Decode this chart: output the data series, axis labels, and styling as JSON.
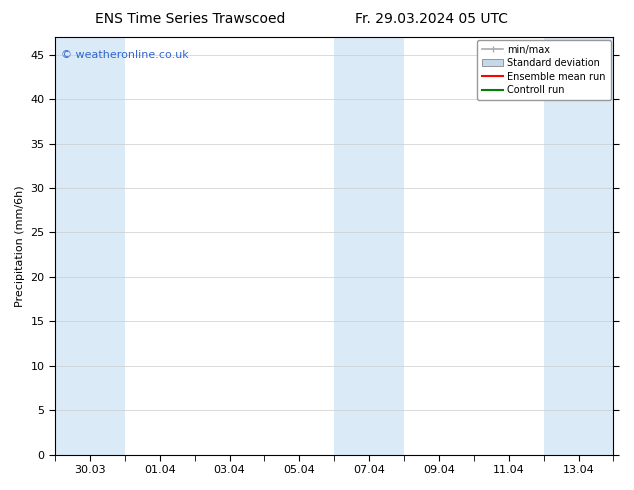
{
  "title_left": "ENS Time Series Trawscoed",
  "title_right": "Fr. 29.03.2024 05 UTC",
  "ylabel": "Precipitation (mm/6h)",
  "watermark": "© weatheronline.co.uk",
  "watermark_color": "#3366cc",
  "bg_color": "#ffffff",
  "plot_bg_color": "#ffffff",
  "ylim": [
    0,
    47
  ],
  "yticks": [
    0,
    5,
    10,
    15,
    20,
    25,
    30,
    35,
    40,
    45
  ],
  "xlim_days": [
    0,
    16
  ],
  "xtick_positions": [
    1,
    3,
    5,
    7,
    9,
    11,
    13,
    15
  ],
  "xtick_labels": [
    "30.03",
    "01.04",
    "03.04",
    "05.04",
    "07.04",
    "09.04",
    "11.04",
    "13.04"
  ],
  "shaded_bands": [
    {
      "x_start": 0,
      "x_end": 2
    },
    {
      "x_start": 8,
      "x_end": 10
    },
    {
      "x_start": 14,
      "x_end": 16
    }
  ],
  "band_color": "#daeaf7",
  "legend_items": [
    {
      "label": "min/max"
    },
    {
      "label": "Standard deviation"
    },
    {
      "label": "Ensemble mean run"
    },
    {
      "label": "Controll run"
    }
  ],
  "legend_colors": [
    "#aaaaaa",
    "#c5d8ea",
    "#ff0000",
    "#008000"
  ],
  "title_fontsize": 10,
  "axis_label_fontsize": 8,
  "tick_fontsize": 8,
  "watermark_fontsize": 8,
  "legend_fontsize": 7
}
